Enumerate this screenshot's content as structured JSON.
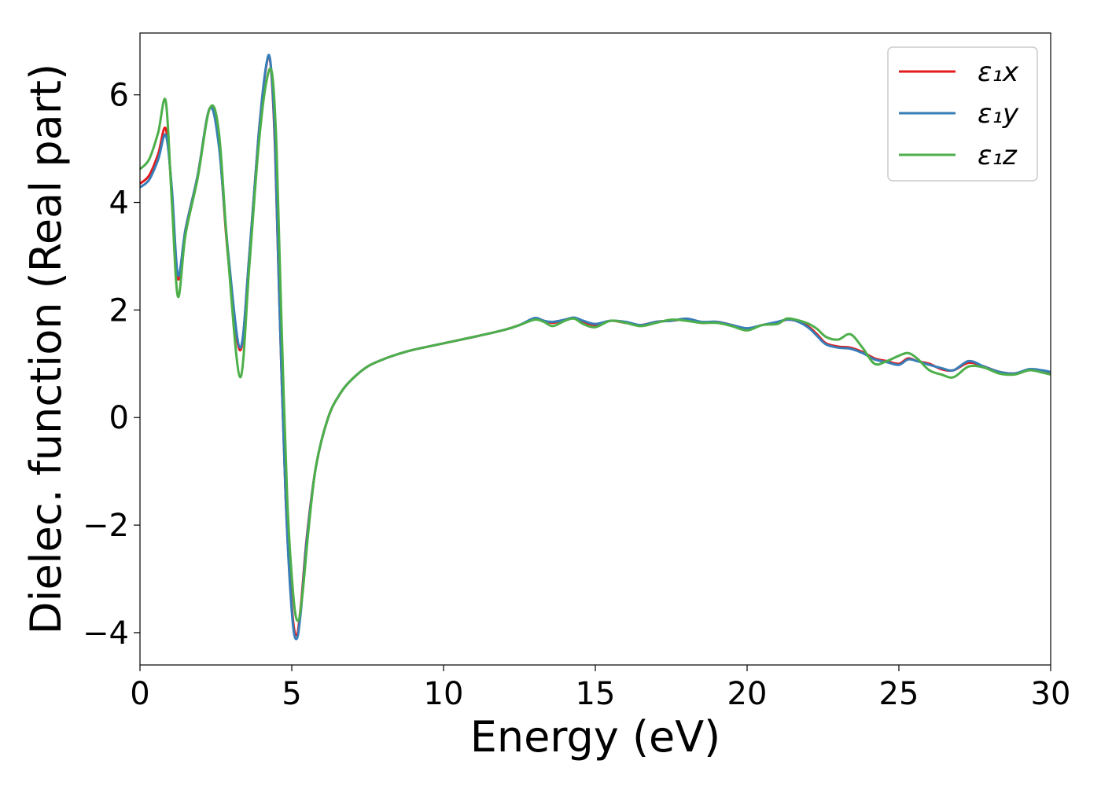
{
  "chart_data": {
    "type": "line",
    "title": "",
    "xlabel": "Energy (eV)",
    "ylabel": "Dielec. function (Real part)",
    "xlim": [
      0,
      30
    ],
    "ylim": [
      -4.6,
      7.15
    ],
    "xticks": [
      0,
      5,
      10,
      15,
      20,
      25,
      30
    ],
    "xtick_labels": [
      "0",
      "5",
      "10",
      "15",
      "20",
      "25",
      "30"
    ],
    "yticks": [
      -4,
      -2,
      0,
      2,
      4,
      6
    ],
    "ytick_labels": [
      "−4",
      "−2",
      "0",
      "2",
      "4",
      "6"
    ],
    "grid": false,
    "legend_position": "top-right",
    "series": [
      {
        "name": "ε₁x",
        "color": "#e41a1c",
        "x": [
          0,
          0.3,
          0.6,
          0.85,
          1.05,
          1.25,
          1.5,
          1.9,
          2.3,
          2.6,
          2.9,
          3.3,
          3.6,
          3.9,
          4.15,
          4.3,
          4.45,
          4.6,
          4.8,
          5.0,
          5.15,
          5.3,
          5.5,
          5.8,
          6.2,
          6.6,
          7.0,
          7.5,
          8.0,
          8.5,
          9.0,
          10.0,
          11.0,
          12.0,
          12.5,
          13.0,
          13.3,
          13.6,
          14.0,
          14.3,
          14.6,
          15.0,
          15.5,
          16.0,
          16.5,
          17.0,
          17.5,
          18.0,
          18.5,
          19.0,
          19.5,
          20.0,
          20.5,
          21.0,
          21.3,
          21.6,
          22.0,
          22.3,
          22.6,
          23.0,
          23.4,
          23.8,
          24.2,
          24.6,
          25.0,
          25.3,
          25.6,
          26.0,
          26.4,
          26.8,
          27.3,
          27.8,
          28.3,
          28.8,
          29.3,
          29.7,
          30.0
        ],
        "y": [
          4.35,
          4.5,
          4.9,
          5.37,
          4.2,
          2.58,
          3.5,
          4.5,
          5.75,
          5.1,
          3.0,
          1.25,
          3.0,
          5.2,
          6.5,
          6.58,
          5.0,
          2.0,
          -1.5,
          -3.5,
          -4.05,
          -3.5,
          -2.2,
          -0.9,
          0.0,
          0.45,
          0.72,
          0.95,
          1.08,
          1.18,
          1.26,
          1.38,
          1.5,
          1.63,
          1.72,
          1.84,
          1.8,
          1.76,
          1.82,
          1.85,
          1.78,
          1.72,
          1.8,
          1.76,
          1.72,
          1.78,
          1.8,
          1.82,
          1.76,
          1.78,
          1.72,
          1.65,
          1.72,
          1.76,
          1.82,
          1.8,
          1.7,
          1.55,
          1.38,
          1.32,
          1.3,
          1.22,
          1.1,
          1.05,
          1.0,
          1.1,
          1.05,
          1.0,
          0.9,
          0.88,
          1.02,
          0.95,
          0.85,
          0.82,
          0.88,
          0.86,
          0.83
        ]
      },
      {
        "name": "ε₁y",
        "color": "#377eb8",
        "x": [
          0,
          0.3,
          0.6,
          0.85,
          1.05,
          1.25,
          1.5,
          1.9,
          2.3,
          2.6,
          2.9,
          3.3,
          3.6,
          3.9,
          4.15,
          4.3,
          4.45,
          4.6,
          4.8,
          5.0,
          5.15,
          5.3,
          5.5,
          5.8,
          6.2,
          6.6,
          7.0,
          7.5,
          8.0,
          8.5,
          9.0,
          10.0,
          11.0,
          12.0,
          12.5,
          13.0,
          13.3,
          13.6,
          14.0,
          14.3,
          14.6,
          15.0,
          15.5,
          16.0,
          16.5,
          17.0,
          17.5,
          18.0,
          18.5,
          19.0,
          19.5,
          20.0,
          20.5,
          21.0,
          21.3,
          21.6,
          22.0,
          22.3,
          22.6,
          23.0,
          23.4,
          23.8,
          24.2,
          24.6,
          25.0,
          25.3,
          25.6,
          26.0,
          26.4,
          26.8,
          27.3,
          27.8,
          28.3,
          28.8,
          29.3,
          29.7,
          30.0
        ],
        "y": [
          4.28,
          4.42,
          4.8,
          5.25,
          4.25,
          2.65,
          3.5,
          4.5,
          5.75,
          5.05,
          3.1,
          1.3,
          3.0,
          5.2,
          6.52,
          6.6,
          5.1,
          2.0,
          -1.5,
          -3.6,
          -4.12,
          -3.6,
          -2.25,
          -0.9,
          0.0,
          0.45,
          0.72,
          0.95,
          1.08,
          1.18,
          1.26,
          1.38,
          1.5,
          1.63,
          1.72,
          1.85,
          1.8,
          1.78,
          1.82,
          1.86,
          1.8,
          1.74,
          1.8,
          1.78,
          1.72,
          1.78,
          1.8,
          1.84,
          1.78,
          1.78,
          1.72,
          1.66,
          1.72,
          1.78,
          1.82,
          1.8,
          1.68,
          1.52,
          1.36,
          1.3,
          1.28,
          1.2,
          1.08,
          1.03,
          0.98,
          1.08,
          1.05,
          0.98,
          0.92,
          0.88,
          1.05,
          0.95,
          0.85,
          0.82,
          0.9,
          0.88,
          0.85
        ]
      },
      {
        "name": "ε₁z",
        "color": "#4daf4a",
        "x": [
          0,
          0.3,
          0.6,
          0.85,
          1.05,
          1.25,
          1.5,
          1.9,
          2.3,
          2.6,
          2.9,
          3.3,
          3.6,
          3.9,
          4.15,
          4.35,
          4.5,
          4.65,
          4.85,
          5.05,
          5.2,
          5.35,
          5.55,
          5.8,
          6.2,
          6.6,
          7.0,
          7.5,
          8.0,
          8.5,
          9.0,
          10.0,
          11.0,
          12.0,
          12.5,
          13.0,
          13.3,
          13.6,
          14.0,
          14.3,
          14.6,
          15.0,
          15.5,
          16.0,
          16.5,
          17.0,
          17.5,
          18.0,
          18.5,
          19.0,
          19.5,
          20.0,
          20.5,
          21.0,
          21.3,
          21.6,
          22.0,
          22.3,
          22.6,
          23.0,
          23.4,
          23.8,
          24.2,
          24.6,
          25.0,
          25.3,
          25.6,
          26.0,
          26.4,
          26.8,
          27.3,
          27.8,
          28.3,
          28.8,
          29.3,
          29.7,
          30.0
        ],
        "y": [
          4.62,
          4.8,
          5.3,
          5.88,
          4.0,
          2.25,
          3.4,
          4.45,
          5.75,
          5.3,
          3.0,
          0.75,
          2.8,
          5.0,
          6.2,
          6.4,
          5.0,
          2.0,
          -1.5,
          -3.3,
          -3.78,
          -3.3,
          -2.1,
          -0.9,
          0.0,
          0.45,
          0.72,
          0.95,
          1.08,
          1.18,
          1.26,
          1.38,
          1.5,
          1.63,
          1.72,
          1.82,
          1.78,
          1.7,
          1.8,
          1.84,
          1.74,
          1.68,
          1.8,
          1.76,
          1.7,
          1.76,
          1.82,
          1.8,
          1.76,
          1.76,
          1.7,
          1.62,
          1.72,
          1.74,
          1.84,
          1.82,
          1.75,
          1.65,
          1.5,
          1.45,
          1.55,
          1.3,
          1.0,
          1.05,
          1.15,
          1.2,
          1.1,
          0.88,
          0.8,
          0.75,
          0.95,
          0.93,
          0.82,
          0.8,
          0.88,
          0.84,
          0.8
        ]
      }
    ]
  }
}
